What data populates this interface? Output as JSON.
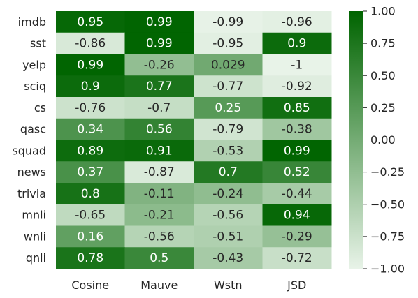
{
  "chart_data": {
    "type": "heatmap",
    "rows": [
      "imdb",
      "sst",
      "yelp",
      "sciq",
      "cs",
      "qasc",
      "squad",
      "news",
      "trivia",
      "mnli",
      "wnli",
      "qnli"
    ],
    "columns": [
      "Cosine",
      "Mauve",
      "Wstn",
      "JSD"
    ],
    "values": [
      [
        0.95,
        0.99,
        -0.99,
        -0.96
      ],
      [
        -0.86,
        0.99,
        -0.95,
        0.9
      ],
      [
        0.99,
        -0.26,
        0.029,
        -1
      ],
      [
        0.9,
        0.77,
        -0.77,
        -0.92
      ],
      [
        -0.76,
        -0.7,
        0.25,
        0.85
      ],
      [
        0.34,
        0.56,
        -0.79,
        -0.38
      ],
      [
        0.89,
        0.91,
        -0.53,
        0.99
      ],
      [
        0.37,
        -0.87,
        0.7,
        0.52
      ],
      [
        0.8,
        -0.11,
        -0.24,
        -0.44
      ],
      [
        -0.65,
        -0.21,
        -0.56,
        0.94
      ],
      [
        0.16,
        -0.56,
        -0.51,
        -0.29
      ],
      [
        0.78,
        0.5,
        -0.43,
        -0.72
      ]
    ],
    "cell_labels": [
      [
        "0.95",
        "0.99",
        "-0.99",
        "-0.96"
      ],
      [
        "-0.86",
        "0.99",
        "-0.95",
        "0.9"
      ],
      [
        "0.99",
        "-0.26",
        "0.029",
        "-1"
      ],
      [
        "0.9",
        "0.77",
        "-0.77",
        "-0.92"
      ],
      [
        "-0.76",
        "-0.7",
        "0.25",
        "0.85"
      ],
      [
        "0.34",
        "0.56",
        "-0.79",
        "-0.38"
      ],
      [
        "0.89",
        "0.91",
        "-0.53",
        "0.99"
      ],
      [
        "0.37",
        "-0.87",
        "0.7",
        "0.52"
      ],
      [
        "0.8",
        "-0.11",
        "-0.24",
        "-0.44"
      ],
      [
        "-0.65",
        "-0.21",
        "-0.56",
        "0.94"
      ],
      [
        "0.16",
        "-0.56",
        "-0.51",
        "-0.29"
      ],
      [
        "0.78",
        "0.5",
        "-0.43",
        "-0.72"
      ]
    ],
    "vmin": -1,
    "vmax": 1,
    "colormap": {
      "low": "#e8f3e8",
      "high": "#006400"
    },
    "colorbar": {
      "ticks": [
        1.0,
        0.75,
        0.5,
        0.25,
        0.0,
        -0.25,
        -0.5,
        -0.75,
        -1.0
      ],
      "tick_labels": [
        "1.00",
        "0.75",
        "0.50",
        "0.25",
        "0.00",
        "−0.25",
        "−0.50",
        "−0.75",
        "−1.00"
      ]
    },
    "text_colors": {
      "dark_cell": "#ffffff",
      "light_cell": "#262626"
    },
    "label_color": "#262626"
  }
}
